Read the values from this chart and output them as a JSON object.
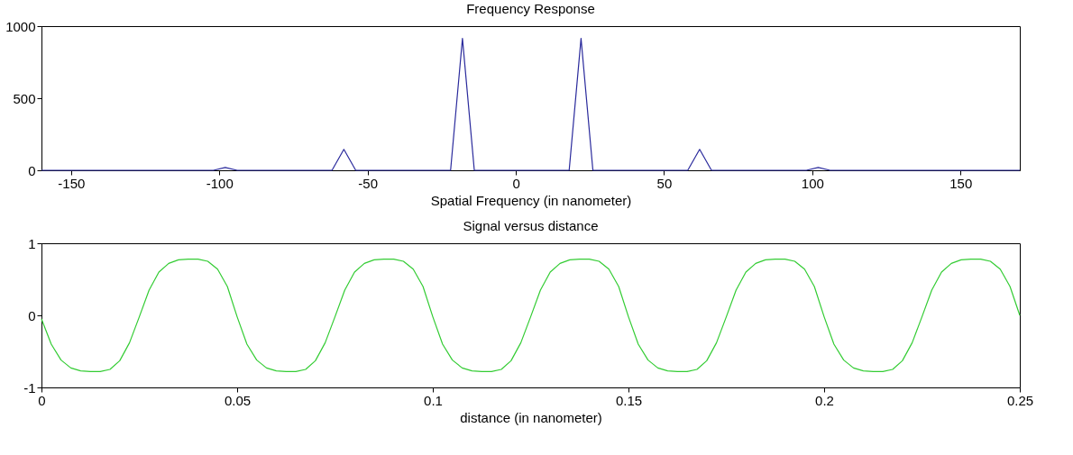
{
  "chart_data": [
    {
      "type": "line",
      "title": "Frequency Response",
      "xlabel": "Spatial Frequency (in nanometer)",
      "xlim": [
        -160,
        170
      ],
      "xticks": [
        -150,
        -100,
        -50,
        0,
        50,
        100,
        150
      ],
      "ylim": [
        0,
        1000
      ],
      "yticks": [
        0,
        500,
        1000
      ],
      "grid": false,
      "series": [
        {
          "color": "#2a2a9c",
          "x": [
            -160,
            -102,
            -98,
            -94,
            -62,
            -58,
            -54,
            -22,
            -18,
            -14,
            18,
            22,
            26,
            58,
            62,
            66,
            98,
            102,
            106,
            170
          ],
          "values": [
            0,
            0,
            20,
            0,
            0,
            145,
            0,
            0,
            915,
            0,
            0,
            915,
            0,
            0,
            145,
            0,
            0,
            20,
            0,
            0
          ]
        }
      ]
    },
    {
      "type": "line",
      "title": "Signal versus distance",
      "xlabel": "distance (in nanometer)",
      "xlim": [
        0,
        0.25
      ],
      "xticks": [
        0,
        0.05,
        0.1,
        0.15,
        0.2,
        0.25
      ],
      "ylim": [
        -1,
        1
      ],
      "yticks": [
        -1,
        0,
        1
      ],
      "grid": false,
      "series": [
        {
          "color": "#33cc33",
          "x": [
            0,
            0.0025,
            0.005,
            0.0075,
            0.01,
            0.0125,
            0.015,
            0.0175,
            0.02,
            0.0225,
            0.025,
            0.0275,
            0.03,
            0.0325,
            0.035,
            0.0375,
            0.04,
            0.0425,
            0.045,
            0.0475,
            0.05,
            0.0525,
            0.055,
            0.0575,
            0.06,
            0.0625,
            0.065,
            0.0675,
            0.07,
            0.0725,
            0.075,
            0.0775,
            0.08,
            0.0825,
            0.085,
            0.0875,
            0.09,
            0.0925,
            0.095,
            0.0975,
            0.1,
            0.1025,
            0.105,
            0.1075,
            0.11,
            0.1125,
            0.115,
            0.1175,
            0.12,
            0.1225,
            0.125,
            0.1275,
            0.13,
            0.1325,
            0.135,
            0.1375,
            0.14,
            0.1425,
            0.145,
            0.1475,
            0.15,
            0.1525,
            0.155,
            0.1575,
            0.16,
            0.1625,
            0.165,
            0.1675,
            0.17,
            0.1725,
            0.175,
            0.1775,
            0.18,
            0.1825,
            0.185,
            0.1875,
            0.19,
            0.1925,
            0.195,
            0.1975,
            0.2,
            0.2025,
            0.205,
            0.2075,
            0.21,
            0.2125,
            0.215,
            0.2175,
            0.22,
            0.2225,
            0.225,
            0.2275,
            0.23,
            0.2325,
            0.235,
            0.2375,
            0.24,
            0.2425,
            0.245,
            0.2475,
            0.25
          ],
          "values": [
            -0.05,
            -0.4,
            -0.62,
            -0.73,
            -0.77,
            -0.78,
            -0.78,
            -0.75,
            -0.63,
            -0.38,
            -0.02,
            0.35,
            0.6,
            0.72,
            0.77,
            0.78,
            0.78,
            0.75,
            0.64,
            0.4,
            -0.02,
            -0.4,
            -0.62,
            -0.73,
            -0.77,
            -0.78,
            -0.78,
            -0.75,
            -0.63,
            -0.38,
            -0.02,
            0.35,
            0.6,
            0.72,
            0.77,
            0.78,
            0.78,
            0.75,
            0.64,
            0.4,
            -0.02,
            -0.4,
            -0.62,
            -0.73,
            -0.77,
            -0.78,
            -0.78,
            -0.75,
            -0.63,
            -0.38,
            -0.02,
            0.35,
            0.6,
            0.72,
            0.77,
            0.78,
            0.78,
            0.75,
            0.64,
            0.4,
            -0.02,
            -0.4,
            -0.62,
            -0.73,
            -0.77,
            -0.78,
            -0.78,
            -0.75,
            -0.63,
            -0.38,
            -0.02,
            0.35,
            0.6,
            0.72,
            0.77,
            0.78,
            0.78,
            0.75,
            0.64,
            0.4,
            -0.02,
            -0.4,
            -0.62,
            -0.73,
            -0.77,
            -0.78,
            -0.78,
            -0.75,
            -0.63,
            -0.38,
            -0.02,
            0.35,
            0.6,
            0.72,
            0.77,
            0.78,
            0.78,
            0.75,
            0.64,
            0.4,
            0
          ]
        }
      ]
    }
  ]
}
